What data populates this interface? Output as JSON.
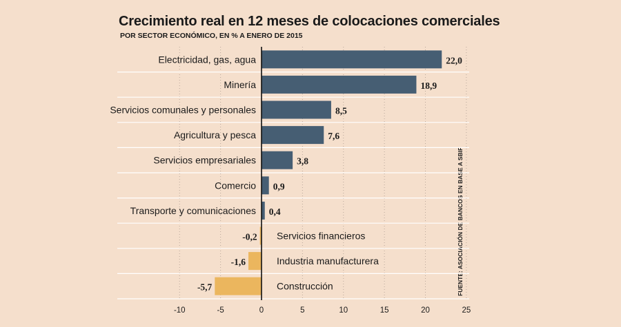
{
  "chart_data": {
    "type": "bar",
    "orientation": "horizontal",
    "title": "Crecimiento real en 12 meses de colocaciones comerciales",
    "subtitle": "POR SECTOR ECONÓMICO, EN % A ENERO DE 2015",
    "source": "FUENTE: ASOCIACIÓN DE BANCOS EN BASE A SBIF",
    "categories": [
      "Electricidad, gas, agua",
      "Minería",
      "Servicios comunales y personales",
      "Agricultura y pesca",
      "Servicios empresariales",
      "Comercio",
      "Transporte y comunicaciones",
      "Servicios financieros",
      "Industria manufacturera",
      "Construcción"
    ],
    "values": [
      22.0,
      18.9,
      8.5,
      7.6,
      3.8,
      0.9,
      0.4,
      -0.2,
      -1.6,
      -5.7
    ],
    "value_labels": [
      "22,0",
      "18,9",
      "8,5",
      "7,6",
      "3,8",
      "0,9",
      "0,4",
      "-0,2",
      "-1,6",
      "-5,7"
    ],
    "xlim": [
      -15,
      25
    ],
    "xticks": [
      -10,
      -5,
      0,
      5,
      10,
      15,
      20,
      25
    ],
    "xtick_labels": [
      "-10",
      "-5",
      "0",
      "5",
      "10",
      "15",
      "20",
      "25"
    ],
    "xlabel": "",
    "ylabel": "",
    "grid": "vertical dotted",
    "colors": {
      "positive": "#465e73",
      "negative": "#ebb65e",
      "background": "#f5dfcc",
      "separator": "#ffffff",
      "grid": "#b9a79a",
      "text": "#1a1a1a"
    }
  }
}
